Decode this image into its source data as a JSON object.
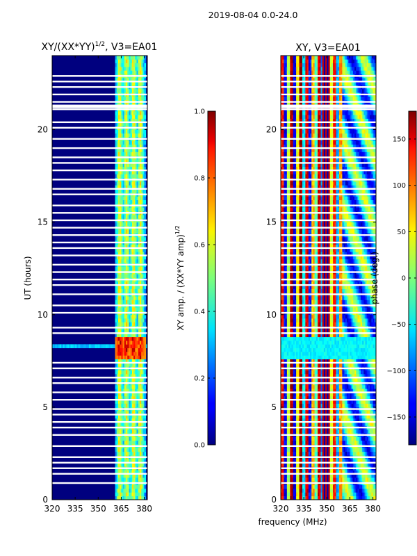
{
  "suptitle": "2019-08-04 0.0-24.0",
  "xlabel_shared": "frequency (MHz)",
  "chart_data": [
    {
      "type": "heatmap",
      "title_prefix": "XY/(XX*YY)",
      "title_sup": "1/2",
      "title_suffix": ", V3=EA01",
      "ylabel": "UT (hours)",
      "xlim": [
        320,
        382
      ],
      "ylim": [
        0,
        24
      ],
      "xticks": [
        "320",
        "335",
        "350",
        "365",
        "380"
      ],
      "xtick_values": [
        320,
        335,
        350,
        365,
        380
      ],
      "yticks": [
        "0",
        "5",
        "10",
        "15",
        "20"
      ],
      "ytick_values": [
        0,
        5,
        10,
        15,
        20
      ],
      "colorbar": {
        "label_prefix": "XY amp. / (XX*YY amp)",
        "label_sup": "1/2",
        "range": [
          0.0,
          1.0
        ],
        "ticks": [
          "0.0",
          "0.2",
          "0.4",
          "0.6",
          "0.8",
          "1.0"
        ],
        "tick_values": [
          0.0,
          0.2,
          0.4,
          0.6,
          0.8,
          1.0
        ],
        "colormap": "jet"
      }
    },
    {
      "type": "heatmap",
      "title": "XY, V3=EA01",
      "xlabel": "frequency (MHz)",
      "xlim": [
        320,
        382
      ],
      "ylim": [
        0,
        24
      ],
      "xticks": [
        "320",
        "335",
        "350",
        "365",
        "380"
      ],
      "xtick_values": [
        320,
        335,
        350,
        365,
        380
      ],
      "yticks": [
        "0",
        "5",
        "10",
        "15",
        "20"
      ],
      "ytick_values": [
        0,
        5,
        10,
        15,
        20
      ],
      "colorbar": {
        "label": "phase (deg.)",
        "range": [
          -180,
          180
        ],
        "ticks": [
          "−150",
          "−100",
          "−50",
          "0",
          "50",
          "100",
          "150"
        ],
        "tick_values": [
          -150,
          -100,
          -50,
          0,
          50,
          100,
          150
        ],
        "colormap": "jet"
      }
    }
  ],
  "flagged_rows_ut": [
    0.9,
    1.4,
    1.7,
    2.0,
    2.3,
    2.9,
    3.5,
    3.9,
    4.2,
    4.6,
    4.9,
    5.4,
    5.8,
    6.3,
    6.6,
    7.1,
    7.4,
    9.0,
    9.3,
    10.1,
    10.5,
    11.1,
    11.6,
    11.9,
    12.3,
    12.7,
    13.2,
    13.6,
    13.9,
    14.3,
    14.7,
    15.1,
    15.5,
    15.9,
    16.5,
    16.8,
    17.3,
    17.8,
    18.2,
    18.5,
    19.0,
    19.5,
    20.1,
    20.4,
    21.1,
    21.5,
    21.9,
    22.3,
    22.6,
    22.9
  ]
}
